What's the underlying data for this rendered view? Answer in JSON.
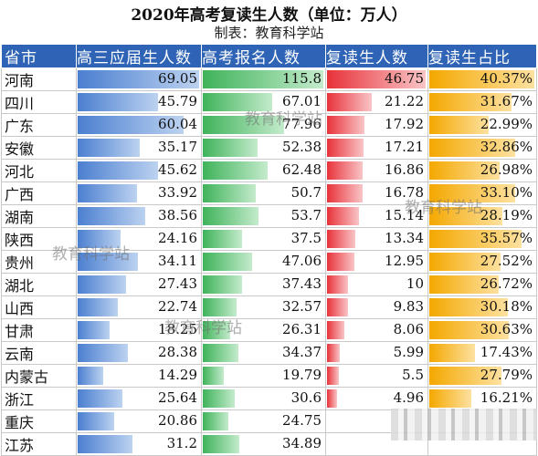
{
  "title": "2020年高考复读生人数（单位：万人）",
  "subtitle": "制表：教育科学站",
  "watermark": "教育科学站",
  "colors": {
    "header": "#2e63b6",
    "blue": "#3e6fc4",
    "green": "#3fb35a",
    "red": "#e8323a",
    "orange": "#f4a800"
  },
  "chart_data": {
    "type": "table",
    "columns": [
      "省市",
      "高三应届生人数",
      "高考报名人数",
      "复读生人数",
      "复读生占比"
    ],
    "rows": [
      [
        "河南",
        "69.05",
        "115.8",
        "46.75",
        "40.37%"
      ],
      [
        "四川",
        "45.79",
        "67.01",
        "21.22",
        "31.67%"
      ],
      [
        "广东",
        "60.04",
        "77.96",
        "17.92",
        "22.99%"
      ],
      [
        "安徽",
        "35.17",
        "52.38",
        "17.21",
        "32.86%"
      ],
      [
        "河北",
        "45.62",
        "62.48",
        "16.86",
        "26.98%"
      ],
      [
        "广西",
        "33.92",
        "50.7",
        "16.78",
        "33.10%"
      ],
      [
        "湖南",
        "38.56",
        "53.7",
        "15.14",
        "28.19%"
      ],
      [
        "陕西",
        "24.16",
        "37.5",
        "13.34",
        "35.57%"
      ],
      [
        "贵州",
        "34.11",
        "47.06",
        "12.95",
        "27.52%"
      ],
      [
        "湖北",
        "27.43",
        "37.43",
        "10",
        "26.72%"
      ],
      [
        "山西",
        "22.74",
        "32.57",
        "9.83",
        "30.18%"
      ],
      [
        "甘肃",
        "18.25",
        "26.31",
        "8.06",
        "30.63%"
      ],
      [
        "云南",
        "28.38",
        "34.37",
        "5.99",
        "17.43%"
      ],
      [
        "内蒙古",
        "14.29",
        "19.79",
        "5.5",
        "27.79%"
      ],
      [
        "浙江",
        "25.64",
        "30.6",
        "4.96",
        "16.21%"
      ],
      [
        "重庆",
        "20.86",
        "24.75",
        "",
        ""
      ],
      [
        "江苏",
        "31.2",
        "34.89",
        "",
        ""
      ]
    ],
    "bar_max": [
      69.05,
      115.8,
      46.75,
      40.37
    ]
  }
}
